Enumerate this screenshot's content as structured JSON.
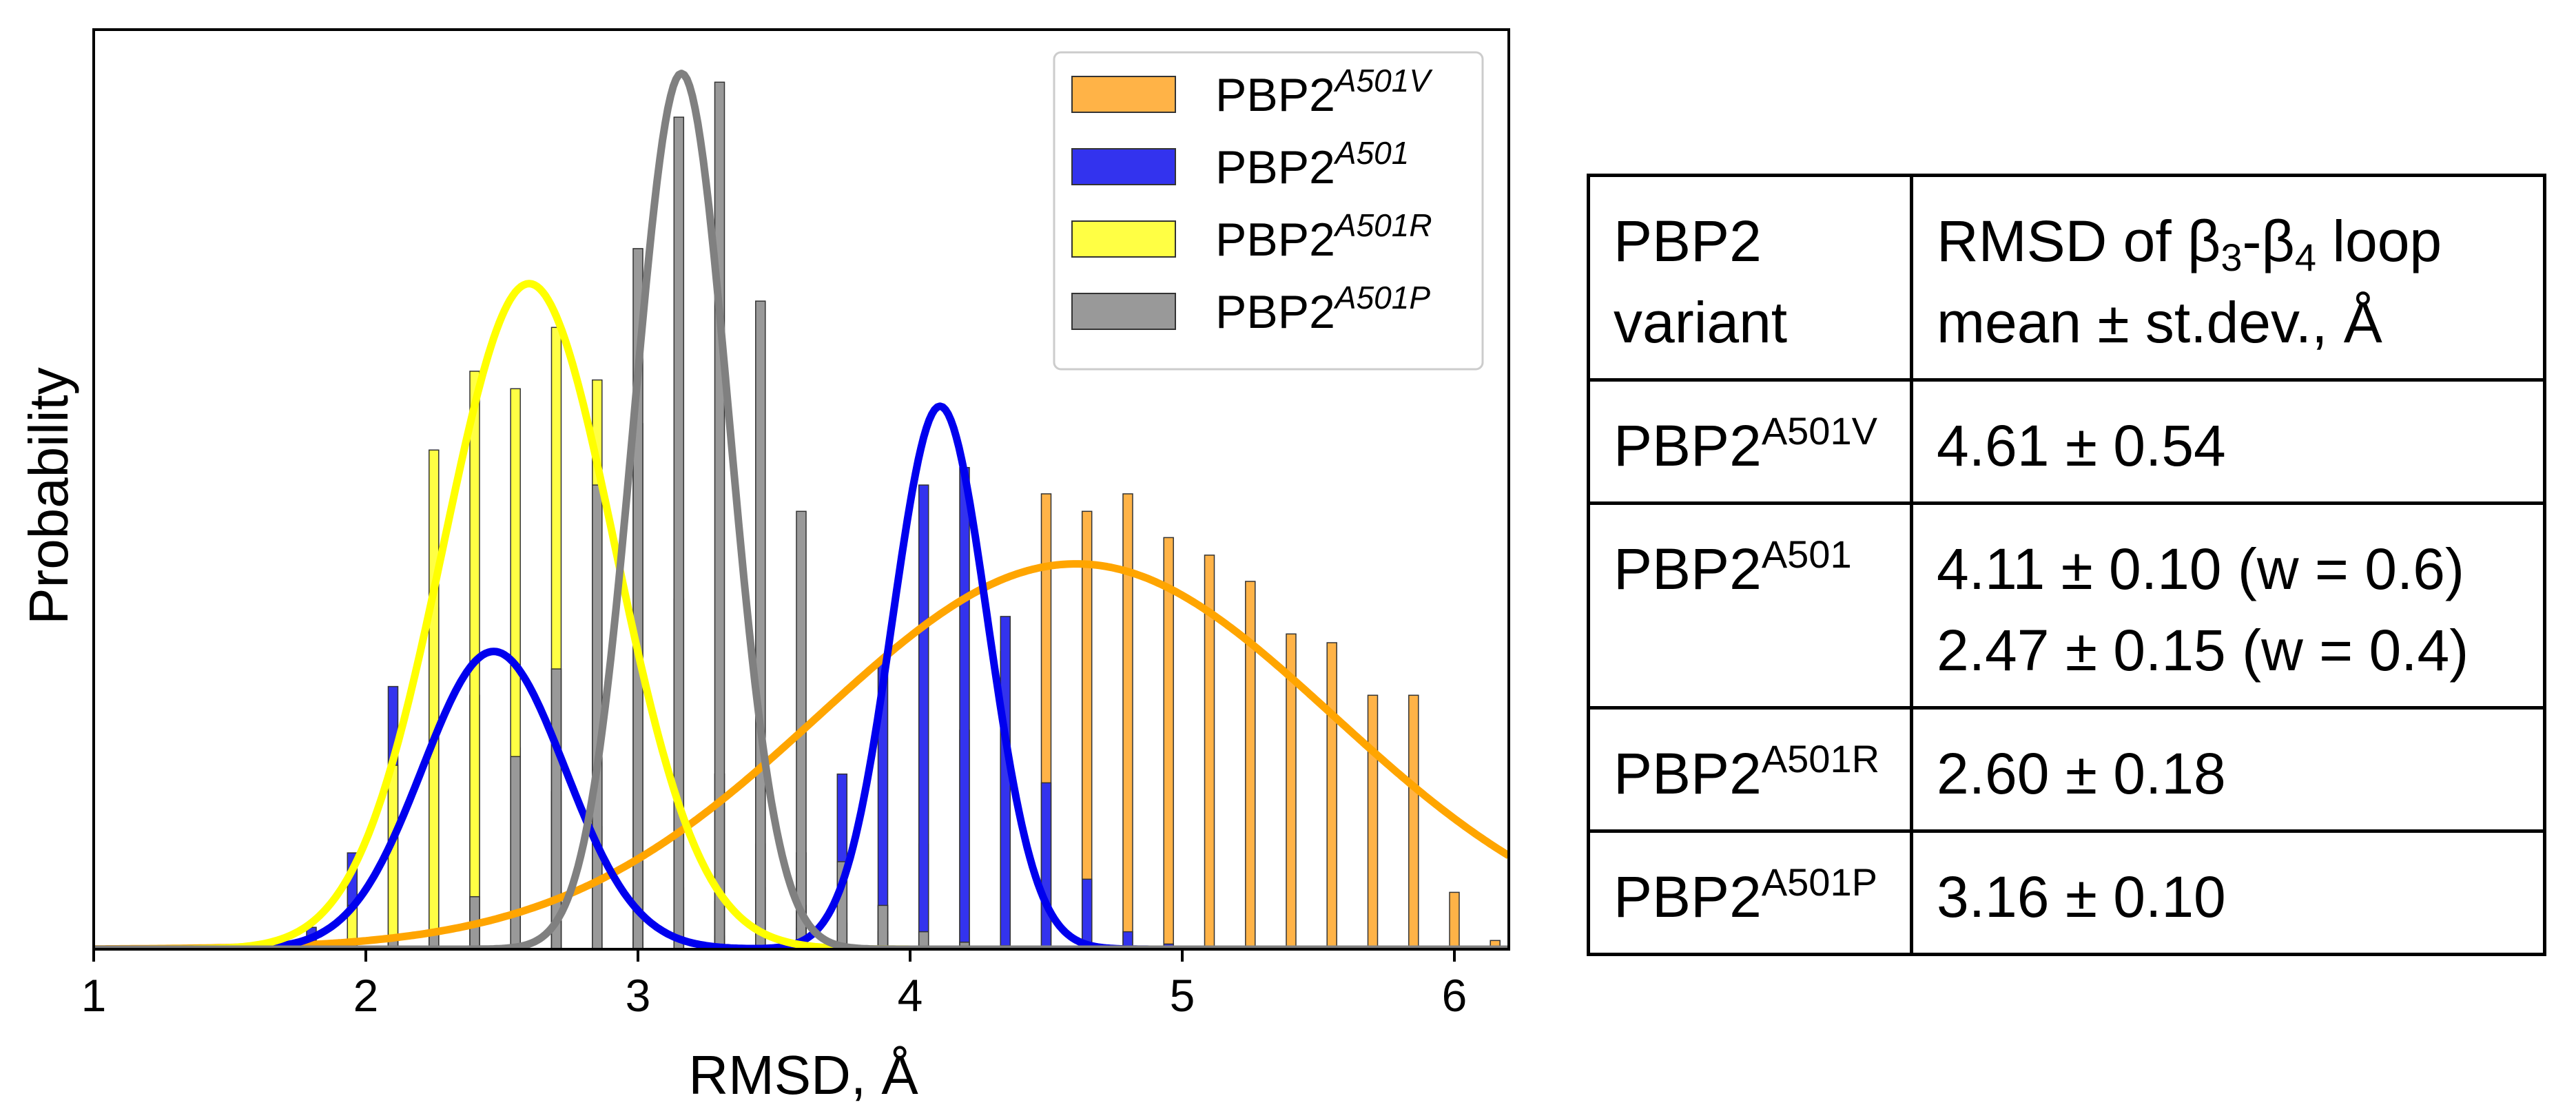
{
  "chart_data": {
    "type": "bar",
    "xlabel": "RMSD, Å",
    "ylabel": "Probability",
    "xlim": [
      1,
      6.2
    ],
    "ylim": [
      0,
      1.05
    ],
    "x_ticks": [
      1,
      2,
      3,
      4,
      5,
      6
    ],
    "y_ticks_shown": false,
    "legend_position": "top-right",
    "series": [
      {
        "name": "PBP2^A501V",
        "label_base": "PBP2",
        "label_sup": "A501V",
        "color": "#FFB347",
        "curve_color": "#FFA500",
        "fit": {
          "mean": 4.61,
          "sd": 0.54,
          "peak": 0.44
        },
        "hist_offset": 0.225,
        "x": [
          1.875,
          2.025,
          2.175,
          2.325,
          2.475,
          2.625,
          2.775,
          2.925,
          3.075,
          3.225,
          3.375,
          3.525,
          3.675,
          3.825,
          3.975,
          4.125,
          4.275,
          4.425,
          4.575,
          4.725,
          4.875,
          5.025,
          5.175,
          5.325,
          5.475,
          5.625,
          5.775,
          5.925
        ],
        "values": [
          0.001,
          0.002,
          0.002,
          0.003,
          0.004,
          0.006,
          0.008,
          0.011,
          0.015,
          0.02,
          0.024,
          0.033,
          0.05,
          0.12,
          0.25,
          0.34,
          0.52,
          0.5,
          0.52,
          0.47,
          0.45,
          0.42,
          0.36,
          0.35,
          0.29,
          0.29,
          0.065,
          0.01
        ]
      },
      {
        "name": "PBP2^A501",
        "label_base": "PBP2",
        "label_sup": "A501",
        "color": "#3333EE",
        "curve_color": "#0000EE",
        "fit": {
          "components": [
            {
              "mean": 4.11,
              "sd": 0.1,
              "w": 0.6,
              "peak": 0.62
            },
            {
              "mean": 2.47,
              "sd": 0.15,
              "w": 0.4,
              "peak": 0.34
            }
          ]
        },
        "hist_offset": 0.075,
        "x": [
          1.575,
          1.725,
          1.875,
          2.025,
          2.175,
          2.325,
          2.475,
          2.625,
          2.775,
          2.925,
          3.075,
          3.225,
          3.375,
          3.525,
          3.675,
          3.825,
          3.975,
          4.125,
          4.275,
          4.425,
          4.575,
          4.725,
          4.875,
          5.025,
          5.175,
          5.325,
          5.475,
          5.625
        ],
        "values": [
          0.01,
          0.025,
          0.11,
          0.3,
          0.39,
          0.29,
          0.23,
          0.18,
          0.14,
          0.1,
          0.07,
          0.055,
          0.07,
          0.11,
          0.2,
          0.33,
          0.53,
          0.55,
          0.38,
          0.19,
          0.08,
          0.02,
          0.006,
          0.003,
          0.002,
          0.002,
          0.001,
          0.002
        ]
      },
      {
        "name": "PBP2^A501R",
        "label_base": "PBP2",
        "label_sup": "A501R",
        "color": "#FFFF44",
        "curve_color": "#FFFF00",
        "fit": {
          "mean": 2.6,
          "sd": 0.18,
          "peak": 0.76
        },
        "hist_offset": 0.15,
        "x": [
          1.65,
          1.8,
          1.95,
          2.1,
          2.25,
          2.4,
          2.55,
          2.7,
          2.85,
          3.0,
          3.15,
          3.3,
          3.45,
          3.6,
          3.75,
          3.9,
          4.05,
          4.2
        ],
        "values": [
          0.01,
          0.05,
          0.21,
          0.57,
          0.66,
          0.64,
          0.71,
          0.65,
          0.6,
          0.4,
          0.2,
          0.12,
          0.05,
          0.03,
          0.02,
          0.006,
          0.003,
          0.001
        ]
      },
      {
        "name": "PBP2^A501P",
        "label_base": "PBP2",
        "label_sup": "A501P",
        "color": "#999999",
        "curve_color": "#808080",
        "fit": {
          "mean": 3.16,
          "sd": 0.1,
          "peak": 1.0
        },
        "hist_offset": 0.0,
        "x": [
          1.65,
          1.8,
          1.95,
          2.1,
          2.25,
          2.4,
          2.55,
          2.7,
          2.85,
          3.0,
          3.15,
          3.3,
          3.45,
          3.6,
          3.75,
          3.9,
          4.05,
          4.2,
          4.35,
          4.5,
          4.65
        ],
        "values": [
          0.002,
          0.004,
          0.006,
          0.01,
          0.02,
          0.06,
          0.22,
          0.32,
          0.53,
          0.8,
          0.95,
          0.99,
          0.74,
          0.5,
          0.1,
          0.05,
          0.02,
          0.008,
          0.004,
          0.002,
          0.001
        ]
      }
    ]
  },
  "table": {
    "header": {
      "col1_line1": "PBP2",
      "col1_line2": "variant",
      "col2_line1_a": "RMSD of β",
      "col2_sub1": "3",
      "col2_line1_b": "-β",
      "col2_sub2": "4",
      "col2_line1_c": " loop",
      "col2_line2": "mean ± st.dev., Å"
    },
    "rows": [
      {
        "base": "PBP2",
        "sup": "A501V",
        "values": [
          "4.61 ± 0.54"
        ]
      },
      {
        "base": "PBP2",
        "sup": "A501",
        "values": [
          "4.11 ± 0.10 (w = 0.6)",
          "2.47 ± 0.15 (w = 0.4)"
        ]
      },
      {
        "base": "PBP2",
        "sup": "A501R",
        "values": [
          "2.60 ± 0.18"
        ]
      },
      {
        "base": "PBP2",
        "sup": "A501P",
        "values": [
          "3.16 ± 0.10"
        ]
      }
    ]
  }
}
